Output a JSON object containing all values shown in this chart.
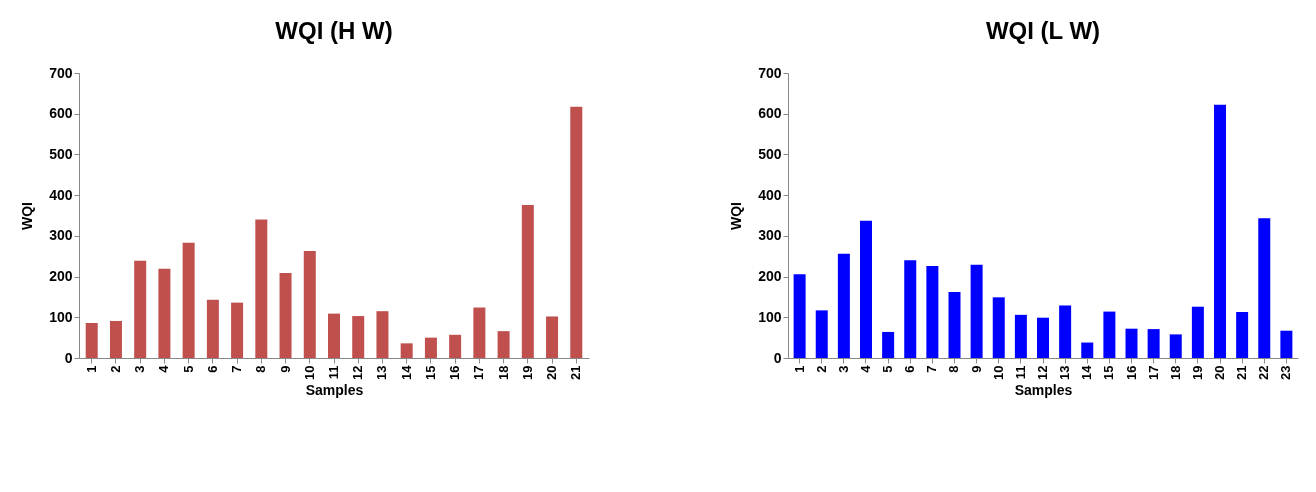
{
  "chart_data": [
    {
      "type": "bar",
      "title": "WQI  (H W)",
      "xlabel": "Samples",
      "ylabel": "WQI",
      "categories": [
        "1",
        "2",
        "3",
        "4",
        "5",
        "6",
        "7",
        "8",
        "9",
        "10",
        "11",
        "12",
        "13",
        "14",
        "15",
        "16",
        "17",
        "18",
        "19",
        "20",
        "21"
      ],
      "values": [
        86,
        91,
        239,
        219,
        283,
        143,
        136,
        340,
        209,
        263,
        109,
        103,
        115,
        36,
        50,
        57,
        124,
        66,
        376,
        102,
        617
      ],
      "color": "#c0504d",
      "ylim": [
        0,
        700
      ],
      "yticks": [
        0,
        100,
        200,
        300,
        400,
        500,
        600,
        700
      ],
      "grid": false
    },
    {
      "type": "bar",
      "title": "WQI (L W)",
      "xlabel": "Samples",
      "ylabel": "WQI",
      "categories": [
        "1",
        "2",
        "3",
        "4",
        "5",
        "6",
        "7",
        "8",
        "9",
        "10",
        "11",
        "12",
        "13",
        "14",
        "15",
        "16",
        "17",
        "18",
        "19",
        "20",
        "21",
        "22",
        "23"
      ],
      "values": [
        206,
        117,
        256,
        337,
        64,
        240,
        226,
        162,
        229,
        149,
        106,
        99,
        129,
        38,
        114,
        72,
        71,
        58,
        126,
        622,
        113,
        343,
        67
      ],
      "color": "#0000ff",
      "ylim": [
        0,
        700
      ],
      "yticks": [
        0,
        100,
        200,
        300,
        400,
        500,
        600,
        700
      ],
      "grid": false
    }
  ]
}
